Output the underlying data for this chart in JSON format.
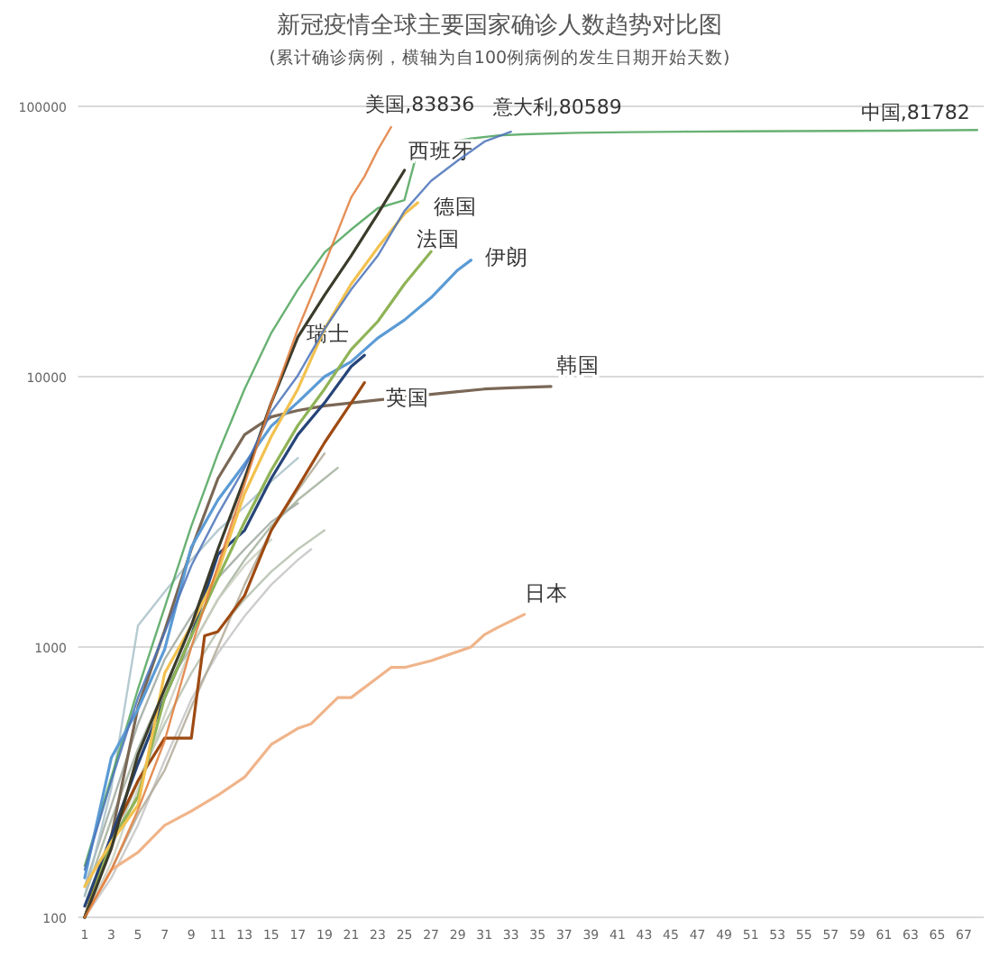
{
  "chart_data": {
    "type": "line",
    "title": "新冠疫情全球主要国家确诊人数趋势对比图",
    "subtitle": "(累计确诊病例，横轴为自100例病例的发生日期开始天数)",
    "log": "y",
    "grid": "y",
    "xlim": [
      0.5,
      68.5
    ],
    "xticks": [
      1,
      3,
      5,
      7,
      9,
      11,
      13,
      15,
      17,
      19,
      21,
      23,
      25,
      27,
      29,
      31,
      33,
      35,
      37,
      39,
      41,
      43,
      45,
      47,
      49,
      51,
      53,
      55,
      57,
      59,
      61,
      63,
      65,
      67
    ],
    "ylim": [
      100,
      100000
    ],
    "yticks": [
      100,
      1000,
      10000,
      100000
    ],
    "series": [
      {
        "color": "#b5c0ad",
        "x": [
          1,
          3,
          5,
          7,
          9,
          11,
          13,
          15,
          17,
          19
        ],
        "values": [
          110,
          180,
          320,
          520,
          800,
          1150,
          1500,
          1900,
          2300,
          2700
        ]
      },
      {
        "color": "#c4c4c4",
        "x": [
          1,
          3,
          5,
          7,
          9,
          11,
          13,
          15,
          17,
          18
        ],
        "values": [
          100,
          140,
          220,
          380,
          640,
          950,
          1300,
          1700,
          2100,
          2300
        ]
      },
      {
        "color": "#a3b09c",
        "x": [
          1,
          3,
          5,
          7,
          9,
          11,
          13,
          15,
          17,
          19,
          20
        ],
        "values": [
          120,
          230,
          420,
          700,
          1000,
          1500,
          2100,
          2800,
          3500,
          4200,
          4600
        ]
      },
      {
        "color": "#9fa9a0",
        "x": [
          1,
          3,
          5,
          7,
          9,
          11,
          13,
          15,
          17
        ],
        "values": [
          130,
          260,
          520,
          900,
          1300,
          1800,
          2300,
          2900,
          3400
        ]
      },
      {
        "color": "#c9cfc0",
        "x": [
          1,
          3,
          5,
          7,
          9,
          11,
          13,
          15
        ],
        "values": [
          100,
          160,
          300,
          560,
          1000,
          1500,
          2000,
          2500
        ]
      },
      {
        "color": "#b0aa98",
        "x": [
          1,
          3,
          5,
          7,
          9,
          11,
          13,
          15,
          17,
          19
        ],
        "values": [
          100,
          150,
          240,
          350,
          600,
          1000,
          1700,
          2700,
          3800,
          5200
        ]
      },
      {
        "color": "#a9c1c9",
        "x": [
          1,
          3,
          5,
          7,
          9,
          11,
          13,
          15,
          17
        ],
        "values": [
          120,
          300,
          1200,
          1600,
          2100,
          2700,
          3300,
          4100,
          5000
        ]
      },
      {
        "color": "#4ea35a",
        "x": [
          1,
          3,
          5,
          7,
          9,
          11,
          13,
          15,
          17,
          19,
          21,
          23,
          25,
          26,
          28,
          30,
          32,
          34,
          38,
          42,
          46,
          50,
          54,
          58,
          62,
          66,
          68
        ],
        "values": [
          155,
          330,
          700,
          1400,
          2800,
          5200,
          9000,
          14500,
          21000,
          28800,
          35000,
          42000,
          45000,
          69000,
          73000,
          76000,
          78000,
          78800,
          79800,
          80300,
          80600,
          80800,
          80950,
          81100,
          81300,
          81600,
          81782
        ]
      },
      {
        "name": "日本",
        "color": "#f0b48a",
        "x": [
          1,
          3,
          5,
          7,
          9,
          11,
          13,
          15,
          17,
          18,
          20,
          21,
          24,
          25,
          27,
          30,
          31,
          32,
          34
        ],
        "values": [
          100,
          150,
          174,
          219,
          247,
          283,
          330,
          436,
          500,
          520,
          650,
          650,
          840,
          840,
          890,
          1000,
          1110,
          1180,
          1320
        ]
      },
      {
        "name": "韩国",
        "color": "#7a6755",
        "x": [
          1,
          3,
          5,
          7,
          9,
          11,
          13,
          15,
          17,
          19,
          21,
          23,
          25,
          27,
          29,
          31,
          33,
          36
        ],
        "values": [
          100,
          200,
          600,
          1150,
          2300,
          4200,
          6100,
          7100,
          7500,
          7800,
          8000,
          8200,
          8400,
          8600,
          8800,
          9000,
          9100,
          9200
        ]
      },
      {
        "name": "英国",
        "color": "#9e4a12",
        "x": [
          1,
          3,
          5,
          7,
          8,
          9,
          10,
          11,
          13,
          15,
          17,
          19,
          21,
          22
        ],
        "values": [
          100,
          200,
          320,
          460,
          460,
          460,
          1100,
          1140,
          1550,
          2700,
          3900,
          5700,
          8000,
          9500
        ]
      },
      {
        "name": "瑞士",
        "color": "#264478",
        "x": [
          1,
          3,
          5,
          7,
          9,
          11,
          13,
          15,
          17,
          19,
          21,
          22
        ],
        "values": [
          110,
          200,
          370,
          650,
          1100,
          2200,
          2700,
          4200,
          6100,
          8000,
          10900,
          12000
        ]
      },
      {
        "name": "伊朗",
        "color": "#5b9bd5",
        "x": [
          1,
          3,
          5,
          7,
          9,
          11,
          13,
          15,
          17,
          19,
          21,
          23,
          25,
          27,
          29,
          30
        ],
        "values": [
          140,
          390,
          590,
          980,
          2340,
          3500,
          4750,
          6560,
          8040,
          10000,
          11360,
          13900,
          16200,
          19600,
          24800,
          27000
        ]
      },
      {
        "name": "法国",
        "color": "#8fb356",
        "x": [
          1,
          3,
          5,
          7,
          9,
          11,
          13,
          15,
          17,
          19,
          21,
          23,
          25,
          27
        ],
        "values": [
          100,
          190,
          280,
          650,
          1100,
          1800,
          2900,
          4500,
          6600,
          9000,
          12600,
          16000,
          22000,
          29000
        ]
      },
      {
        "name": "德国",
        "color": "#f2c14e",
        "x": [
          1,
          3,
          5,
          7,
          9,
          11,
          13,
          15,
          17,
          19,
          21,
          23,
          25,
          26
        ],
        "values": [
          130,
          190,
          260,
          800,
          1200,
          1900,
          3700,
          6000,
          9000,
          15000,
          22000,
          30000,
          40000,
          44000
        ]
      },
      {
        "name": "西班牙",
        "color": "#3b3b2b",
        "x": [
          1,
          3,
          5,
          7,
          9,
          11,
          13,
          15,
          17,
          19,
          21,
          23,
          25
        ],
        "values": [
          100,
          180,
          400,
          700,
          1200,
          2300,
          4200,
          8000,
          14000,
          20000,
          28000,
          40000,
          58000
        ]
      },
      {
        "color": "#4a72b8",
        "x": [
          1,
          3,
          5,
          7,
          9,
          11,
          13,
          15,
          17,
          19,
          21,
          23,
          25,
          27,
          29,
          31,
          33
        ],
        "values": [
          150,
          320,
          650,
          1130,
          2000,
          3100,
          4600,
          7400,
          10100,
          15000,
          21000,
          28000,
          41000,
          53000,
          63000,
          74000,
          80589
        ]
      },
      {
        "color": "#e07b39",
        "x": [
          1,
          3,
          5,
          7,
          9,
          11,
          13,
          15,
          17,
          19,
          21,
          22,
          23,
          24
        ],
        "values": [
          100,
          150,
          250,
          450,
          1000,
          2000,
          4000,
          8000,
          15000,
          26000,
          46000,
          55000,
          69000,
          83836
        ]
      }
    ],
    "annotations": [
      {
        "text": "美国,83836",
        "x": 24,
        "y": 83836
      },
      {
        "text": "意大利,80589",
        "x": 33,
        "y": 80589
      },
      {
        "text": "中国,81782",
        "x": 68,
        "y": 81782
      }
    ]
  }
}
